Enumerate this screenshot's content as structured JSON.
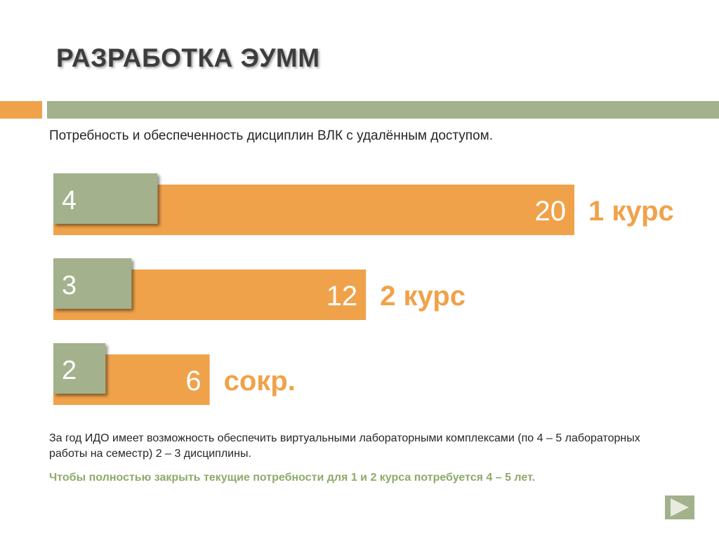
{
  "header": {
    "title": "РАЗРАБОТКА ЭУММ",
    "subtitle": "Потребность и обеспеченность дисциплин ВЛК с удалённым доступом."
  },
  "chart_data": {
    "type": "bar",
    "orientation": "horizontal",
    "categories": [
      "1 курс",
      "2 курс",
      "сокр."
    ],
    "series": [
      {
        "values": [
          20,
          12,
          6
        ]
      },
      {
        "values": [
          4,
          3,
          2
        ]
      }
    ],
    "xlim": [
      0,
      20
    ],
    "grid": false,
    "legend": "none"
  },
  "footer": {
    "note": "За год ИДО имеет возможность обеспечить виртуальными лабораторными комплексами (по 4 – 5 лабораторных работы на семестр) 2 – 3 дисциплины.",
    "conclusion": "Чтобы полностью закрыть текущие потребности для 1 и 2 курса потребуется 4 – 5 лет."
  },
  "colors": {
    "orange": "#f0a24a",
    "green": "#a3b18c",
    "green_text": "#8eaa6b"
  },
  "icons": {
    "next": "play-arrow-icon"
  }
}
